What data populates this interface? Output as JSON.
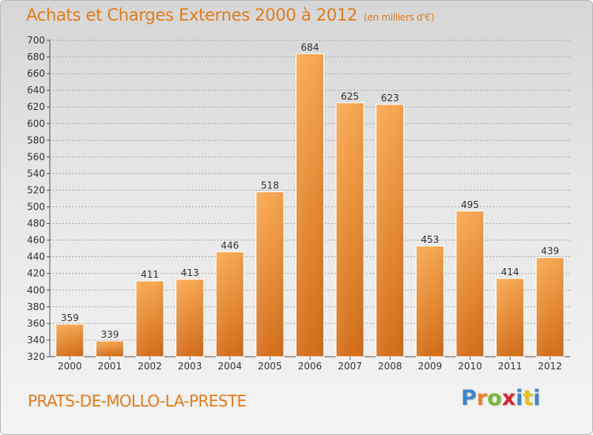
{
  "title": "Achats et Charges Externes 2000 à 2012",
  "subtitle": "(en milliers d'€)",
  "town": "PRATS-DE-MOLLO-LA-PRESTE",
  "logo": {
    "letters": [
      "P",
      "r",
      "o",
      "x",
      "i",
      "t",
      "i"
    ],
    "colors": [
      "#3f86c6",
      "#e8822a",
      "#7ab83a",
      "#d6262f",
      "#3f86c6",
      "#e8c21c",
      "#3f86c6"
    ]
  },
  "colors": {
    "accent": "#e07c1c",
    "bar_light": "#f6a54e",
    "bar_dark": "#d06a18"
  },
  "chart_data": {
    "type": "bar",
    "categories": [
      "2000",
      "2001",
      "2002",
      "2003",
      "2004",
      "2005",
      "2006",
      "2007",
      "2008",
      "2009",
      "2010",
      "2011",
      "2012"
    ],
    "values": [
      359,
      339,
      411,
      413,
      446,
      518,
      684,
      625,
      623,
      453,
      495,
      414,
      439
    ],
    "ylim": [
      320,
      700
    ],
    "yticks": [
      320,
      340,
      360,
      380,
      400,
      420,
      440,
      460,
      480,
      500,
      520,
      540,
      560,
      580,
      600,
      620,
      640,
      660,
      680,
      700
    ],
    "grid": true
  }
}
